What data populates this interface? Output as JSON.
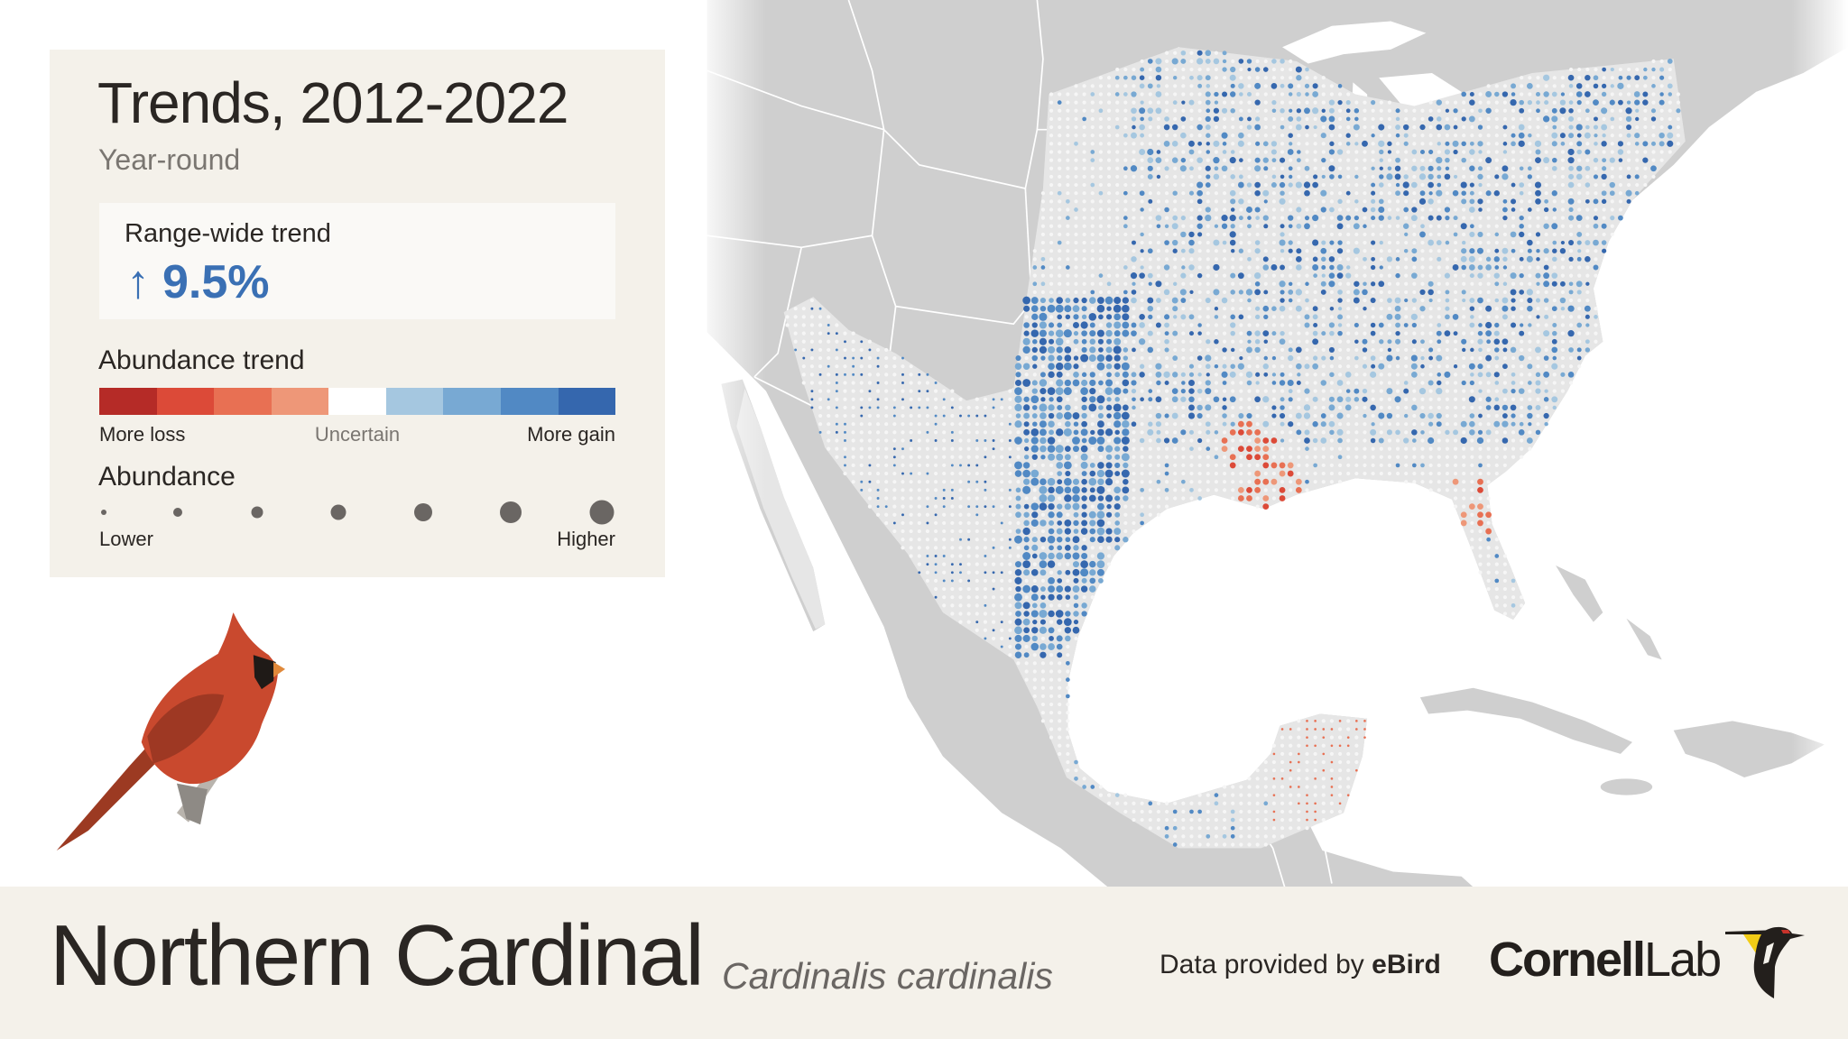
{
  "legend": {
    "title": "Trends, 2012-2022",
    "season": "Year-round",
    "range_wide_label": "Range-wide trend",
    "range_wide_direction_icon": "arrow-up-icon",
    "range_wide_arrow": "↑",
    "range_wide_value": "9.5%",
    "range_wide_percent": 9.5,
    "trend_heading": "Abundance trend",
    "trend_colors": [
      "#b52b27",
      "#dc4a38",
      "#e87053",
      "#ee9778",
      "#ffffff",
      "#a5c7e0",
      "#78a9d3",
      "#5189c4",
      "#3567ae"
    ],
    "trend_low_label": "More loss",
    "trend_mid_label": "Uncertain",
    "trend_high_label": "More gain",
    "abundance_heading": "Abundance",
    "abundance_low_label": "Lower",
    "abundance_high_label": "Higher"
  },
  "footer": {
    "common_name": "Northern Cardinal",
    "scientific_name": "Cardinalis cardinalis",
    "credit_prefix": "Data provided by",
    "credit_source": "eBird",
    "logo_text_bold": "Cornell",
    "logo_text_light": "Lab"
  },
  "colors": {
    "panel_bg": "#f4f1ea",
    "land": "#cfcfcf",
    "range": "#e6e6e6",
    "gain": "#3567ae",
    "loss": "#dc4a38",
    "accent_blue": "#3a70b4"
  }
}
